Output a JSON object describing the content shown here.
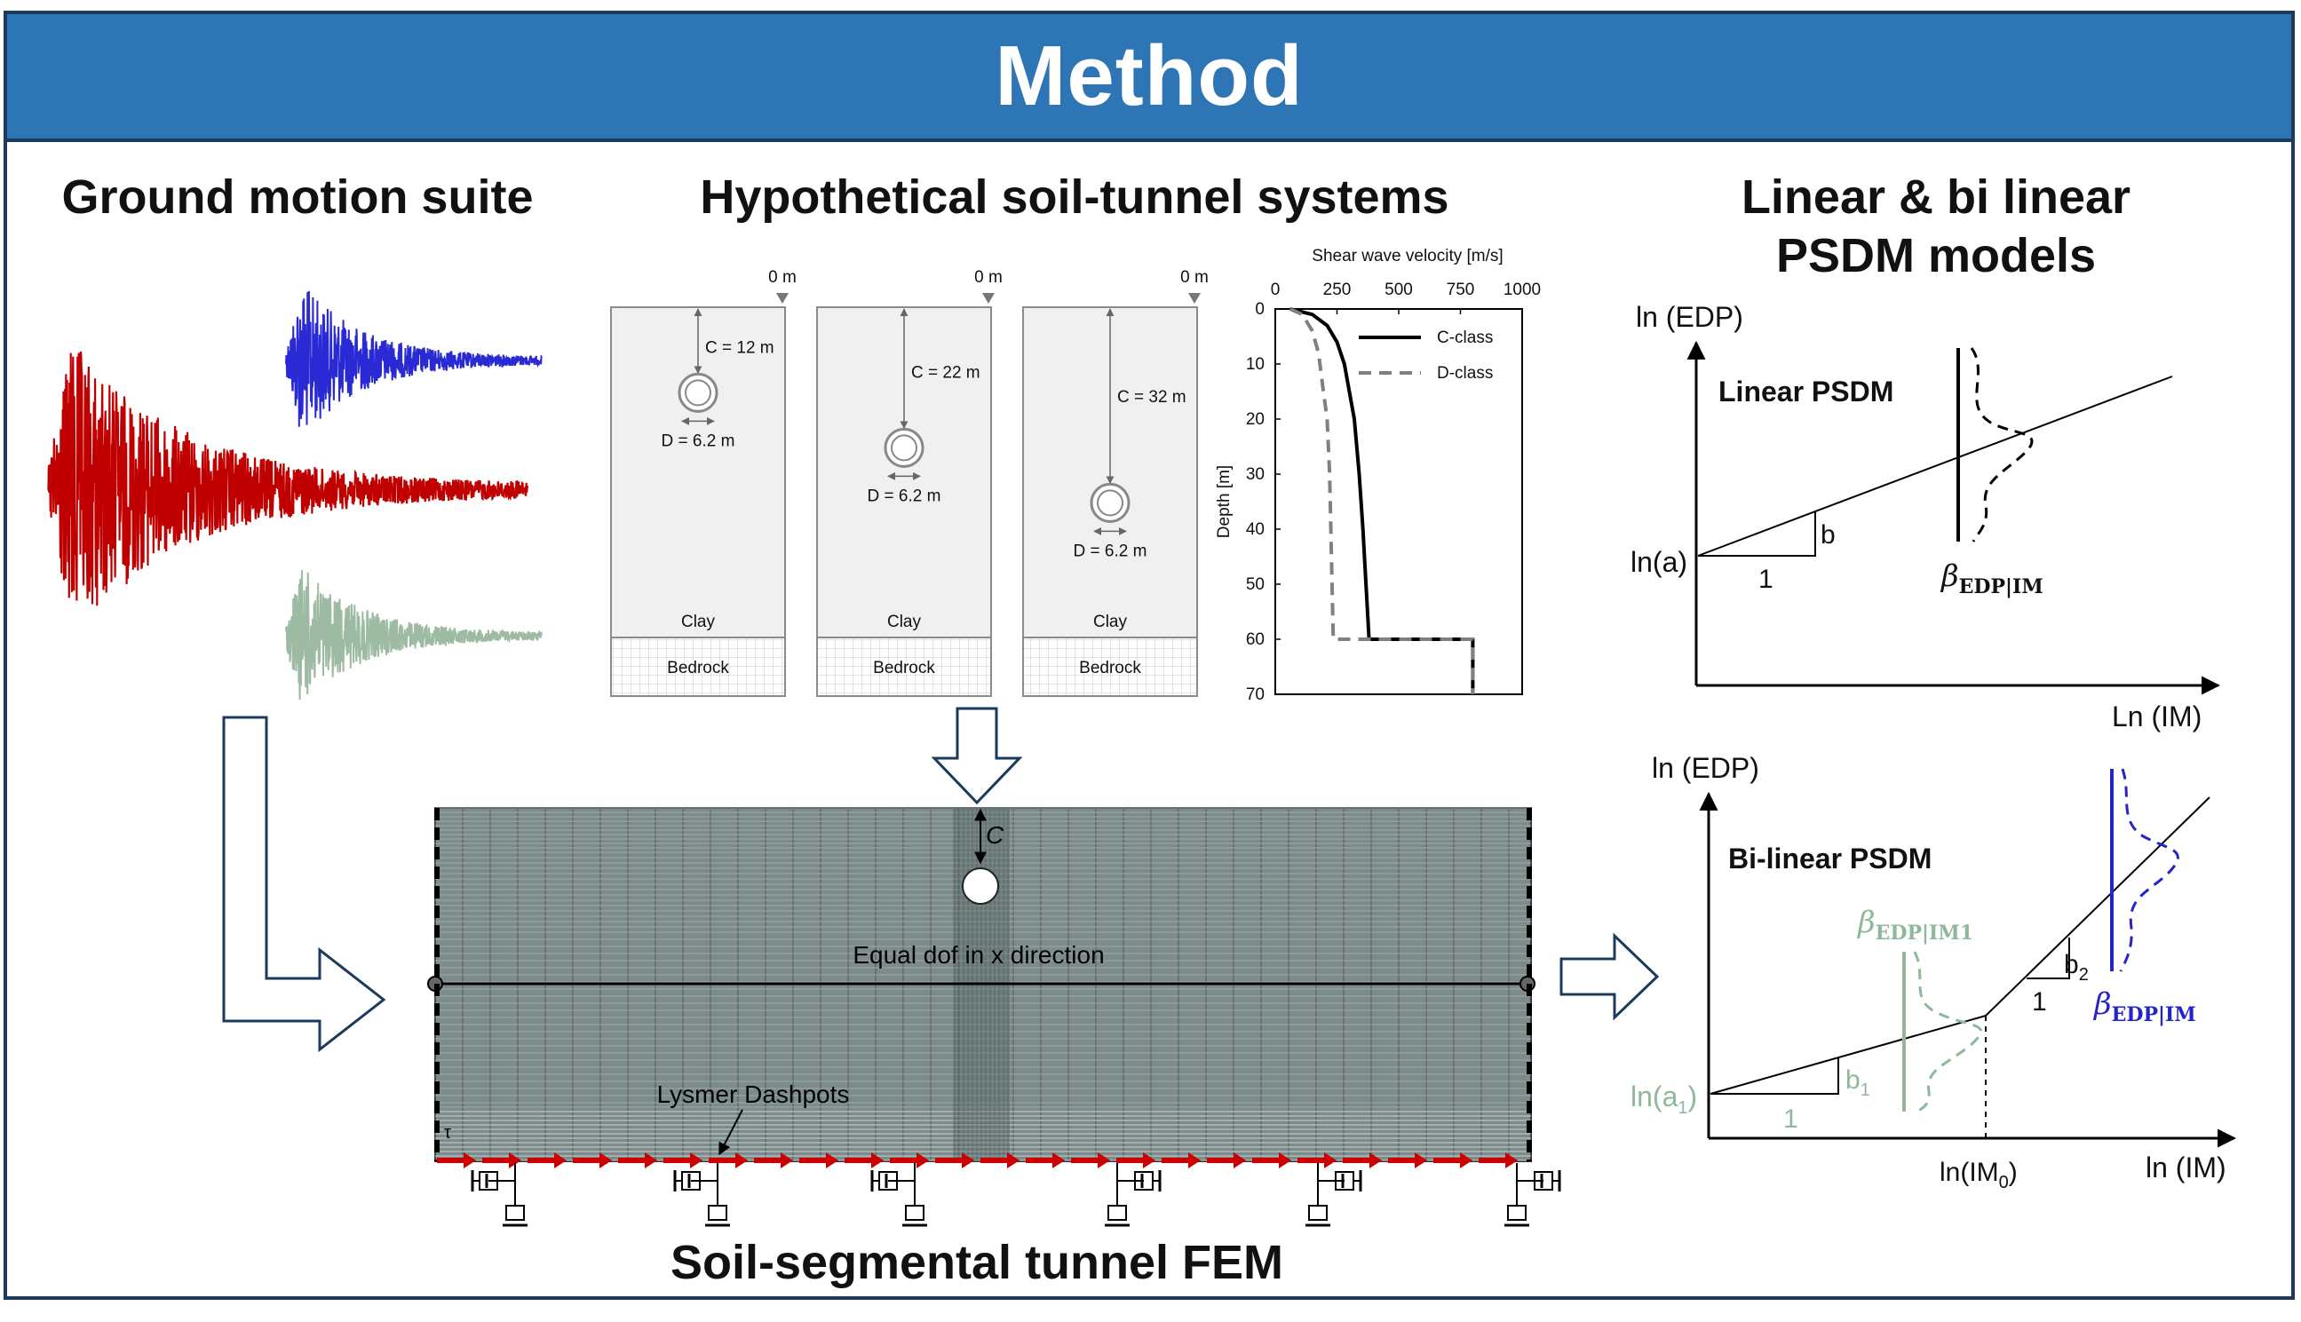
{
  "header": {
    "title": "Method"
  },
  "sections": {
    "ground_motion": {
      "title": "Ground motion suite"
    },
    "soil_tunnel": {
      "title": "Hypothetical soil-tunnel systems"
    },
    "psdm": {
      "title_line1": "Linear & bi linear",
      "title_line2": "PSDM models"
    },
    "fem": {
      "title": "Soil-segmental tunnel FEM"
    }
  },
  "soil_columns": [
    {
      "surface_label": "0 m",
      "cover_label": "C = 12 m",
      "diameter_label": "D = 6.2 m",
      "clay_label": "Clay",
      "bedrock_label": "Bedrock"
    },
    {
      "surface_label": "0 m",
      "cover_label": "C = 22 m",
      "diameter_label": "D = 6.2 m",
      "clay_label": "Clay",
      "bedrock_label": "Bedrock"
    },
    {
      "surface_label": "0 m",
      "cover_label": "C = 32 m",
      "diameter_label": "D = 6.2 m",
      "clay_label": "Clay",
      "bedrock_label": "Bedrock"
    }
  ],
  "chart_data": {
    "type": "line",
    "title": "Shear wave velocity [m/s]",
    "xlabel": "Shear wave velocity [m/s]",
    "ylabel": "Depth [m]",
    "xlim": [
      0,
      1000
    ],
    "ylim": [
      70,
      0
    ],
    "x_ticks": [
      "0",
      "250",
      "500",
      "750",
      "1000"
    ],
    "y_ticks": [
      "0",
      "10",
      "20",
      "30",
      "40",
      "50",
      "60",
      "70"
    ],
    "legend_position": "top-right",
    "series": [
      {
        "name": "C-class",
        "style": "solid",
        "color": "#000000",
        "x": [
          60,
          150,
          210,
          250,
          280,
          300,
          320,
          340,
          355,
          380,
          380,
          800,
          800
        ],
        "y": [
          0,
          1,
          3,
          6,
          10,
          15,
          20,
          30,
          40,
          60,
          60,
          60,
          70
        ]
      },
      {
        "name": "D-class",
        "style": "dashed",
        "color": "#808080",
        "x": [
          60,
          110,
          150,
          175,
          195,
          210,
          220,
          235,
          235,
          800,
          800
        ],
        "y": [
          0,
          1,
          4,
          8,
          15,
          20,
          30,
          60,
          60,
          60,
          70
        ]
      }
    ]
  },
  "linear_psdm": {
    "title": "Linear PSDM",
    "y_axis_label": "ln (EDP)",
    "x_axis_label": "Ln (IM)",
    "intercept_label": "ln(a)",
    "slope_label": "b",
    "run_label": "1",
    "dispersion_label": "β",
    "dispersion_sub": "EDP|IM"
  },
  "bilinear_psdm": {
    "title": "Bi-linear PSDM",
    "y_axis_label": "ln (EDP)",
    "x_axis_label": "ln (IM)",
    "intercept_label": "ln(a",
    "intercept_sub": "1",
    "intercept_close": ")",
    "slope1_label": "b",
    "slope1_sub": "1",
    "run1_label": "1",
    "slope2_label": "b",
    "slope2_sub": "2",
    "run2_label": "1",
    "breakpoint_label": "ln(IM",
    "breakpoint_sub": "0",
    "breakpoint_close": ")",
    "dispersion1_label": "β",
    "dispersion1_sub": "EDP|IM1",
    "dispersion2_label": "β",
    "dispersion2_sub": "EDP|IM",
    "colors": {
      "segment1": "#8fb89a",
      "segment2": "#2424c8"
    }
  },
  "fem": {
    "cover_label": "C",
    "equal_dof_label": "Equal dof in x direction",
    "dashpot_label": "Lysmer Dashpots",
    "shear_label": "τ",
    "colors": {
      "mesh": "#6f7f7f",
      "arrows": "#cc0000"
    }
  },
  "ground_motion_colors": {
    "top": "#2a2ad4",
    "middle": "#c00000",
    "bottom": "#9dbba2"
  }
}
